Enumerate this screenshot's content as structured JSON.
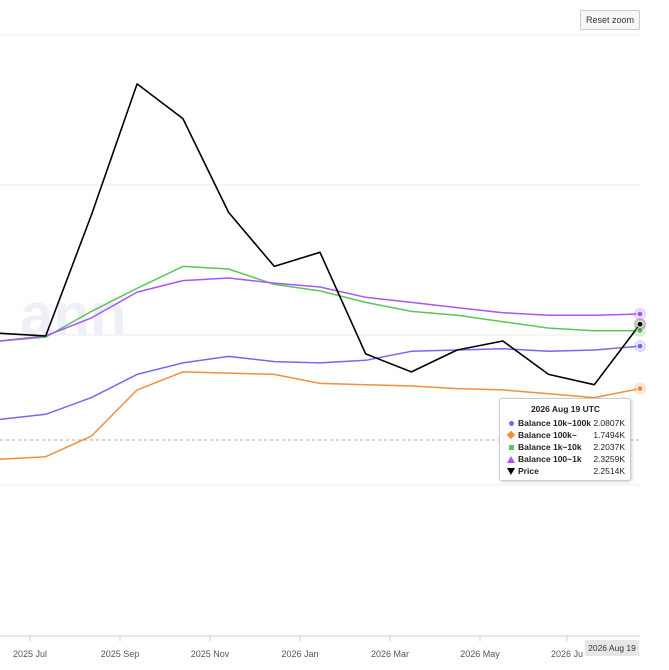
{
  "toolbar": {
    "reset_zoom_label": "Reset zoom"
  },
  "tooltip": {
    "title": "2026 Aug 19 UTC",
    "rows": [
      {
        "name": "Balance 10k~100k",
        "value": "2.0807K",
        "color": "#6f6bf0",
        "symbol": "dot-square"
      },
      {
        "name": "Balance 100k~",
        "value": "1.7494K",
        "color": "#f28e3c",
        "symbol": "diamond"
      },
      {
        "name": "Balance 1k~10k",
        "value": "2.2037K",
        "color": "#5cc45c",
        "symbol": "square"
      },
      {
        "name": "Balance 100~1k",
        "value": "2.3259K",
        "color": "#a855f7",
        "symbol": "triangle-up"
      },
      {
        "name": "Price",
        "value": "2.2514K",
        "color": "#000000",
        "symbol": "triangle-down"
      }
    ]
  },
  "crosshair": {
    "x_label": "2026 Aug 19"
  },
  "chart_data": {
    "type": "line",
    "x_ticks": [
      "2025 Jul",
      "2025 Sep",
      "2025 Nov",
      "2026 Jan",
      "2026 Mar",
      "2026 May",
      "2026 Ju"
    ],
    "x": [
      "2025 Jun",
      "2025 Jul",
      "2025 Aug",
      "2025 Sep",
      "2025 Oct",
      "2025 Nov",
      "2025 Dec",
      "2026 Jan",
      "2026 Feb",
      "2026 Mar",
      "2026 Apr",
      "2026 May",
      "2026 Jun",
      "2026 Jul",
      "2026 Aug 19"
    ],
    "series": [
      {
        "name": "Balance 10k~100k",
        "color": "#6f6bf0",
        "values": [
          1.51,
          1.55,
          1.68,
          1.86,
          1.95,
          2.0,
          1.96,
          1.95,
          1.97,
          2.04,
          2.05,
          2.06,
          2.04,
          2.05,
          2.08
        ]
      },
      {
        "name": "Balance 100k~",
        "color": "#f28e3c",
        "values": [
          1.2,
          1.22,
          1.38,
          1.74,
          1.88,
          1.87,
          1.86,
          1.79,
          1.78,
          1.77,
          1.75,
          1.74,
          1.71,
          1.68,
          1.75
        ]
      },
      {
        "name": "Balance 1k~10k",
        "color": "#5cc45c",
        "values": [
          2.12,
          2.15,
          2.35,
          2.53,
          2.7,
          2.68,
          2.56,
          2.51,
          2.42,
          2.35,
          2.32,
          2.27,
          2.22,
          2.2,
          2.2
        ]
      },
      {
        "name": "Balance 100~1k",
        "color": "#a855f7",
        "values": [
          2.12,
          2.16,
          2.3,
          2.5,
          2.59,
          2.61,
          2.57,
          2.54,
          2.46,
          2.42,
          2.38,
          2.34,
          2.32,
          2.32,
          2.33
        ]
      },
      {
        "name": "Price",
        "color": "#000000",
        "values": [
          2.18,
          2.16,
          3.1,
          4.12,
          3.85,
          3.12,
          2.7,
          2.81,
          2.02,
          1.88,
          2.05,
          2.12,
          1.86,
          1.78,
          2.25
        ]
      }
    ],
    "ylim": [
      1.0,
      4.5
    ],
    "grid": true,
    "legend": "tooltip"
  }
}
